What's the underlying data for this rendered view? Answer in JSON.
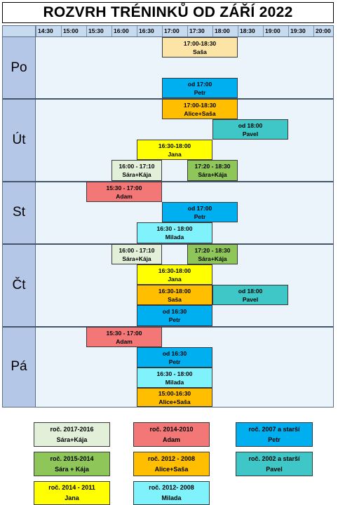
{
  "title": "ROZVRH TRÉNINKŮ OD ZÁŘÍ 2022",
  "times": [
    "14:30",
    "15:00",
    "15:30",
    "16:00",
    "16:30",
    "17:00",
    "17:30",
    "18:00",
    "18:30",
    "19:00",
    "19:30",
    "20:00"
  ],
  "days": {
    "po": "Po",
    "ut": "Út",
    "st": "St",
    "ct": "Čt",
    "pa": "Pá"
  },
  "colors": {
    "light_green": "#e2efd9",
    "green": "#8fc65a",
    "yellow": "#ffff00",
    "red": "#f47777",
    "orange": "#ffbf00",
    "cyan": "#7ff2fb",
    "blue": "#00aff0",
    "teal": "#3fc7c7",
    "schedule_bg": "#ebf4fb",
    "day_label_bg": "#b4c7e7"
  },
  "blocks": {
    "po1": {
      "time": "17:00-18:30",
      "name": "Saša",
      "color": "#fce4a6"
    },
    "po2": {
      "time": "od 17:00",
      "name": "Petr",
      "color": "#00aff0"
    },
    "ut1": {
      "time": "17:00-18:30",
      "name": "Alice+Saša",
      "color": "#ffbf00"
    },
    "ut2": {
      "time": "od 18:00",
      "name": "Pavel",
      "color": "#3fc7c7"
    },
    "ut3": {
      "time": "16:30-18:00",
      "name": "Jana",
      "color": "#ffff00"
    },
    "ut4": {
      "time": "16:00 - 17:10",
      "name": "Sára+Kája",
      "color": "#e2efd9"
    },
    "ut5": {
      "time": "17:20 - 18:30",
      "name": "Sára+Kája",
      "color": "#8fc65a"
    },
    "st1": {
      "time": "15:30 - 17:00",
      "name": "Adam",
      "color": "#f47777"
    },
    "st2": {
      "time": "od 17:00",
      "name": "Petr",
      "color": "#00aff0"
    },
    "st3": {
      "time": "16:30 - 18:00",
      "name": "Milada",
      "color": "#7ff2fb"
    },
    "ct1": {
      "time": "16:00 - 17:10",
      "name": "Sára+Kája",
      "color": "#e2efd9"
    },
    "ct2": {
      "time": "17:20 - 18:30",
      "name": "Sára+Kája",
      "color": "#8fc65a"
    },
    "ct3": {
      "time": "16:30-18:00",
      "name": "Jana",
      "color": "#ffff00"
    },
    "ct4": {
      "time": "16:30-18:00",
      "name": "Saša",
      "color": "#ffbf00"
    },
    "ct5": {
      "time": "od 18:00",
      "name": "Pavel",
      "color": "#3fc7c7"
    },
    "ct6": {
      "time": "od 16:30",
      "name": "Petr",
      "color": "#00aff0"
    },
    "pa1": {
      "time": "15:30 - 17:00",
      "name": "Adam",
      "color": "#f47777"
    },
    "pa2": {
      "time": "od 16:30",
      "name": "Petr",
      "color": "#00aff0"
    },
    "pa3": {
      "time": "16:30 - 18:00",
      "name": "Milada",
      "color": "#7ff2fb"
    },
    "pa4": {
      "time": "15:00-16:30",
      "name": "Alice+Saša",
      "color": "#ffbf00"
    }
  },
  "legend": {
    "l1": {
      "years": "roč. 2017-2016",
      "names": "Sára+Kája",
      "color": "#e2efd9"
    },
    "l2": {
      "years": "roč. 2014-2010",
      "names": "Adam",
      "color": "#f47777"
    },
    "l3": {
      "years": "roč. 2007 a starší",
      "names": "Petr",
      "color": "#00aff0"
    },
    "l4": {
      "years": "roč. 2015-2014",
      "names": "Sára + Kája",
      "color": "#8fc65a"
    },
    "l5": {
      "years": "roč. 2012 - 2008",
      "names": "Alice+Saša",
      "color": "#ffbf00"
    },
    "l6": {
      "years": "roč. 2002 a starší",
      "names": "Pavel",
      "color": "#3fc7c7"
    },
    "l7": {
      "years": "roč. 2014 - 2011",
      "names": "Jana",
      "color": "#ffff00"
    },
    "l8": {
      "years": "roč. 2012- 2008",
      "names": "Milada",
      "color": "#7ff2fb"
    }
  }
}
